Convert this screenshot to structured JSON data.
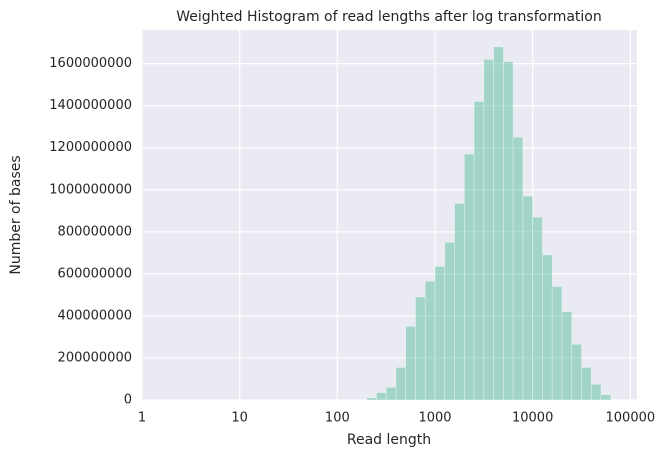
{
  "chart_data": {
    "type": "histogram",
    "title": "Weighted Histogram of read lengths after log transformation",
    "x_label": "Read length",
    "y_label": "Number of bases",
    "bins": [
      200,
      251,
      316,
      398,
      501,
      631,
      794,
      1000,
      1259,
      1585,
      1995,
      2512,
      3162,
      3981,
      5012,
      6310,
      7943,
      10000,
      12589,
      15849,
      19953,
      25119,
      31623,
      39811,
      50119,
      63096
    ],
    "values": [
      10000000,
      35000000,
      60000000,
      155000000,
      350000000,
      490000000,
      565000000,
      635000000,
      750000000,
      935000000,
      1170000000,
      1420000000,
      1620000000,
      1680000000,
      1610000000,
      1250000000,
      970000000,
      870000000,
      690000000,
      540000000,
      420000000,
      265000000,
      155000000,
      75000000,
      25000000
    ],
    "color": "#66c2a5",
    "x_log": true,
    "xlim": [
      1,
      117000
    ],
    "xticks": [
      1,
      10,
      100,
      1000,
      10000,
      100000
    ],
    "ylim": [
      0,
      1760000000
    ],
    "yticks": [
      0,
      200000000,
      400000000,
      600000000,
      800000000,
      1000000000,
      1200000000,
      1400000000,
      1600000000
    ],
    "grid": true
  }
}
